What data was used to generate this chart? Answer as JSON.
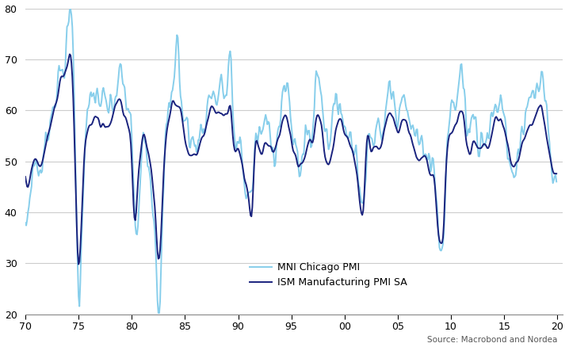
{
  "chicago_color": "#87CEEB",
  "ism_color": "#1a237e",
  "chicago_linewidth": 1.4,
  "ism_linewidth": 1.4,
  "chicago_label": "MNI Chicago PMI",
  "ism_label": "ISM Manufacturing PMI SA",
  "ylim": [
    20,
    80
  ],
  "yticks": [
    20,
    30,
    40,
    50,
    60,
    70,
    80
  ],
  "xlim_start": 1970,
  "xlim_end": 2020.5,
  "xtick_positions": [
    1970,
    1975,
    1980,
    1985,
    1990,
    1995,
    2000,
    2005,
    2010,
    2015,
    2020
  ],
  "xtick_labels": [
    "70",
    "75",
    "80",
    "85",
    "90",
    "95",
    "00",
    "05",
    "10",
    "15",
    "20"
  ],
  "source_text": "Source: Macrobond and Nordea",
  "source_fontsize": 7.5,
  "legend_fontsize": 9,
  "tick_fontsize": 9,
  "grid_color": "#cccccc",
  "background_color": "#ffffff",
  "fig_width": 7.18,
  "fig_height": 4.38,
  "chicago_key_points": [
    [
      1970.0,
      35
    ],
    [
      1970.5,
      45
    ],
    [
      1971.0,
      50
    ],
    [
      1971.5,
      48
    ],
    [
      1972.0,
      55
    ],
    [
      1972.5,
      60
    ],
    [
      1973.0,
      65
    ],
    [
      1973.5,
      68
    ],
    [
      1974.0,
      75
    ],
    [
      1974.2,
      78
    ],
    [
      1974.5,
      72
    ],
    [
      1975.0,
      24
    ],
    [
      1975.5,
      50
    ],
    [
      1976.0,
      60
    ],
    [
      1976.5,
      63
    ],
    [
      1977.0,
      62
    ],
    [
      1977.5,
      61
    ],
    [
      1978.0,
      60
    ],
    [
      1978.5,
      63
    ],
    [
      1979.0,
      67
    ],
    [
      1979.5,
      61
    ],
    [
      1980.0,
      55
    ],
    [
      1980.3,
      38
    ],
    [
      1980.5,
      34
    ],
    [
      1981.0,
      55
    ],
    [
      1981.5,
      52
    ],
    [
      1982.0,
      42
    ],
    [
      1982.3,
      32
    ],
    [
      1982.5,
      21
    ],
    [
      1983.0,
      45
    ],
    [
      1983.5,
      60
    ],
    [
      1984.0,
      68
    ],
    [
      1984.3,
      75
    ],
    [
      1984.5,
      66
    ],
    [
      1985.0,
      58
    ],
    [
      1985.5,
      55
    ],
    [
      1986.0,
      53
    ],
    [
      1986.5,
      56
    ],
    [
      1987.0,
      59
    ],
    [
      1987.5,
      64
    ],
    [
      1988.0,
      62
    ],
    [
      1988.5,
      65
    ],
    [
      1989.0,
      65
    ],
    [
      1989.3,
      71
    ],
    [
      1989.5,
      58
    ],
    [
      1990.0,
      55
    ],
    [
      1990.3,
      52
    ],
    [
      1990.5,
      47
    ],
    [
      1991.0,
      44
    ],
    [
      1991.3,
      44
    ],
    [
      1991.5,
      50
    ],
    [
      1992.0,
      55
    ],
    [
      1992.5,
      57
    ],
    [
      1993.0,
      56
    ],
    [
      1993.5,
      53
    ],
    [
      1994.0,
      60
    ],
    [
      1994.5,
      64
    ],
    [
      1995.0,
      57
    ],
    [
      1995.5,
      52
    ],
    [
      1996.0,
      50
    ],
    [
      1996.5,
      56
    ],
    [
      1997.0,
      56
    ],
    [
      1997.3,
      66
    ],
    [
      1997.5,
      67
    ],
    [
      1997.8,
      65
    ],
    [
      1998.0,
      60
    ],
    [
      1998.5,
      55
    ],
    [
      1999.0,
      59
    ],
    [
      1999.3,
      60
    ],
    [
      1999.5,
      63
    ],
    [
      2000.0,
      56
    ],
    [
      2000.5,
      56
    ],
    [
      2001.0,
      52
    ],
    [
      2001.3,
      48
    ],
    [
      2001.5,
      42
    ],
    [
      2001.8,
      43
    ],
    [
      2002.0,
      52
    ],
    [
      2002.5,
      54
    ],
    [
      2003.0,
      56
    ],
    [
      2003.5,
      55
    ],
    [
      2004.0,
      62
    ],
    [
      2004.5,
      64
    ],
    [
      2005.0,
      60
    ],
    [
      2005.5,
      65
    ],
    [
      2006.0,
      58
    ],
    [
      2006.5,
      56
    ],
    [
      2007.0,
      53
    ],
    [
      2007.5,
      54
    ],
    [
      2008.0,
      50
    ],
    [
      2008.5,
      48
    ],
    [
      2008.8,
      36
    ],
    [
      2009.0,
      33
    ],
    [
      2009.3,
      35
    ],
    [
      2009.5,
      46
    ],
    [
      2010.0,
      60
    ],
    [
      2010.5,
      62
    ],
    [
      2011.0,
      68
    ],
    [
      2011.3,
      62
    ],
    [
      2011.5,
      56
    ],
    [
      2012.0,
      60
    ],
    [
      2012.5,
      55
    ],
    [
      2013.0,
      56
    ],
    [
      2013.5,
      55
    ],
    [
      2014.0,
      59
    ],
    [
      2014.5,
      62
    ],
    [
      2015.0,
      60
    ],
    [
      2015.5,
      50
    ],
    [
      2016.0,
      48
    ],
    [
      2016.5,
      55
    ],
    [
      2017.0,
      57
    ],
    [
      2017.5,
      62
    ],
    [
      2018.0,
      63
    ],
    [
      2018.5,
      65
    ],
    [
      2019.0,
      58
    ],
    [
      2019.5,
      48
    ],
    [
      2019.8,
      45
    ]
  ],
  "ism_key_points": [
    [
      1970.0,
      48
    ],
    [
      1970.5,
      47
    ],
    [
      1971.0,
      50
    ],
    [
      1971.5,
      49
    ],
    [
      1972.0,
      54
    ],
    [
      1972.5,
      58
    ],
    [
      1973.0,
      63
    ],
    [
      1973.5,
      67
    ],
    [
      1974.0,
      69
    ],
    [
      1974.2,
      71
    ],
    [
      1974.5,
      62
    ],
    [
      1975.0,
      30
    ],
    [
      1975.5,
      50
    ],
    [
      1976.0,
      57
    ],
    [
      1976.5,
      59
    ],
    [
      1977.0,
      58
    ],
    [
      1977.5,
      57
    ],
    [
      1978.0,
      58
    ],
    [
      1978.5,
      61
    ],
    [
      1979.0,
      61
    ],
    [
      1979.5,
      57
    ],
    [
      1980.0,
      51
    ],
    [
      1980.3,
      38
    ],
    [
      1980.5,
      43
    ],
    [
      1981.0,
      55
    ],
    [
      1981.5,
      52
    ],
    [
      1982.0,
      46
    ],
    [
      1982.3,
      36
    ],
    [
      1982.5,
      30
    ],
    [
      1983.0,
      48
    ],
    [
      1983.5,
      58
    ],
    [
      1984.0,
      62
    ],
    [
      1984.3,
      61
    ],
    [
      1984.5,
      61
    ],
    [
      1985.0,
      54
    ],
    [
      1985.5,
      52
    ],
    [
      1986.0,
      51
    ],
    [
      1986.5,
      54
    ],
    [
      1987.0,
      57
    ],
    [
      1987.5,
      61
    ],
    [
      1988.0,
      59
    ],
    [
      1988.5,
      60
    ],
    [
      1989.0,
      60
    ],
    [
      1989.3,
      61
    ],
    [
      1989.5,
      55
    ],
    [
      1990.0,
      52
    ],
    [
      1990.3,
      50
    ],
    [
      1990.5,
      47
    ],
    [
      1991.0,
      42
    ],
    [
      1991.3,
      40
    ],
    [
      1991.5,
      49
    ],
    [
      1992.0,
      52
    ],
    [
      1992.5,
      54
    ],
    [
      1993.0,
      53
    ],
    [
      1993.5,
      52
    ],
    [
      1994.0,
      57
    ],
    [
      1994.5,
      59
    ],
    [
      1995.0,
      54
    ],
    [
      1995.5,
      50
    ],
    [
      1996.0,
      49
    ],
    [
      1996.5,
      53
    ],
    [
      1997.0,
      54
    ],
    [
      1997.3,
      58
    ],
    [
      1997.5,
      59
    ],
    [
      1997.8,
      57
    ],
    [
      1998.0,
      54
    ],
    [
      1998.5,
      48
    ],
    [
      1999.0,
      54
    ],
    [
      1999.3,
      57
    ],
    [
      1999.5,
      58
    ],
    [
      2000.0,
      55
    ],
    [
      2000.5,
      53
    ],
    [
      2001.0,
      50
    ],
    [
      2001.3,
      45
    ],
    [
      2001.5,
      40
    ],
    [
      2001.8,
      41
    ],
    [
      2002.0,
      50
    ],
    [
      2002.5,
      52
    ],
    [
      2003.0,
      53
    ],
    [
      2003.5,
      53
    ],
    [
      2004.0,
      59
    ],
    [
      2004.5,
      59
    ],
    [
      2005.0,
      56
    ],
    [
      2005.5,
      58
    ],
    [
      2006.0,
      55
    ],
    [
      2006.5,
      53
    ],
    [
      2007.0,
      51
    ],
    [
      2007.5,
      52
    ],
    [
      2008.0,
      48
    ],
    [
      2008.5,
      45
    ],
    [
      2008.8,
      36
    ],
    [
      2009.0,
      34
    ],
    [
      2009.3,
      36
    ],
    [
      2009.5,
      47
    ],
    [
      2010.0,
      57
    ],
    [
      2010.5,
      58
    ],
    [
      2011.0,
      59
    ],
    [
      2011.3,
      56
    ],
    [
      2011.5,
      52
    ],
    [
      2012.0,
      54
    ],
    [
      2012.5,
      52
    ],
    [
      2013.0,
      53
    ],
    [
      2013.5,
      53
    ],
    [
      2014.0,
      57
    ],
    [
      2014.5,
      58
    ],
    [
      2015.0,
      56
    ],
    [
      2015.5,
      51
    ],
    [
      2016.0,
      49
    ],
    [
      2016.5,
      53
    ],
    [
      2017.0,
      55
    ],
    [
      2017.5,
      58
    ],
    [
      2018.0,
      59
    ],
    [
      2018.5,
      60
    ],
    [
      2019.0,
      55
    ],
    [
      2019.5,
      49
    ],
    [
      2019.8,
      47
    ]
  ]
}
